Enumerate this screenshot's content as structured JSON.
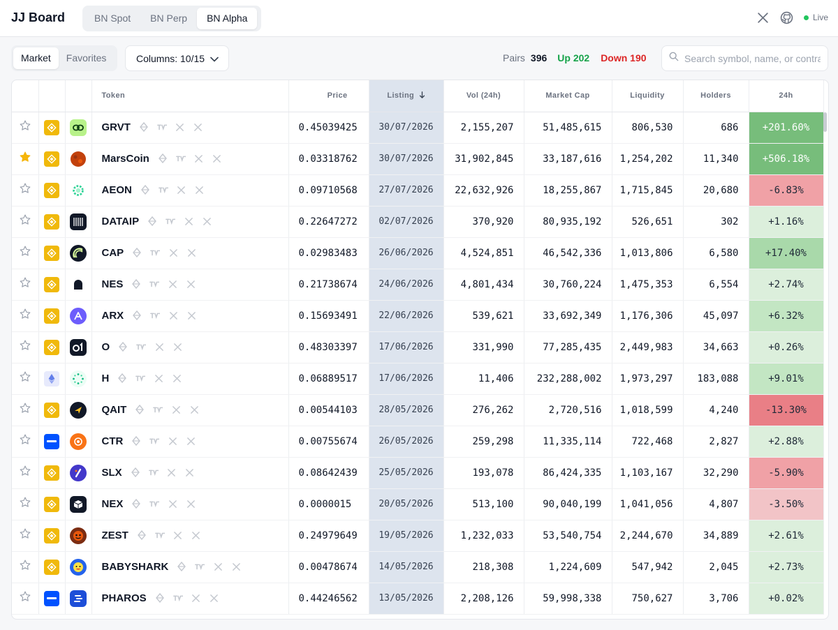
{
  "app": {
    "title": "JJ Board",
    "live_label": "Live"
  },
  "exchange_tabs": [
    "BN Spot",
    "BN Perp",
    "BN Alpha"
  ],
  "active_exchange_tab": "BN Alpha",
  "view_tabs": [
    "Market",
    "Favorites"
  ],
  "active_view_tab": "Market",
  "columns_button": {
    "label": "Columns: 10/15"
  },
  "stats": {
    "pairs_label": "Pairs",
    "pairs_value": "396",
    "up_label": "Up 202",
    "down_label": "Down 190"
  },
  "search": {
    "placeholder": "Search symbol, name, or contract",
    "value": ""
  },
  "colors": {
    "up": "#16a34a",
    "down": "#dc2626",
    "listing_bg": "#dde4ee",
    "star_fav": "#f5b50a"
  },
  "table": {
    "headers": {
      "token": "Token",
      "price": "Price",
      "listing": "Listing",
      "vol": "Vol (24h)",
      "mcap": "Market Cap",
      "liquidity": "Liquidity",
      "holders": "Holders",
      "change": "24h"
    },
    "sort_column": "listing",
    "sort_direction": "desc",
    "rows": [
      {
        "fav": false,
        "chain": "bnb",
        "logo": "link-icon",
        "symbol": "GRVT",
        "price": "0.45039425",
        "listing": "30/07/2026",
        "vol": "2,155,207",
        "mcap": "51,485,615",
        "liquidity": "806,530",
        "holders": "686",
        "change": "+201.60%",
        "change_pct": 201.6
      },
      {
        "fav": true,
        "chain": "bnb",
        "logo": "planet-icon",
        "symbol": "MarsCoin",
        "price": "0.03318762",
        "listing": "30/07/2026",
        "vol": "31,902,845",
        "mcap": "33,187,616",
        "liquidity": "1,254,202",
        "holders": "11,340",
        "change": "+506.18%",
        "change_pct": 506.18
      },
      {
        "fav": false,
        "chain": "bnb",
        "logo": "gear-icon",
        "symbol": "AEON",
        "price": "0.09710568",
        "listing": "27/07/2026",
        "vol": "22,632,926",
        "mcap": "18,255,867",
        "liquidity": "1,715,845",
        "holders": "20,680",
        "change": "-6.83%",
        "change_pct": -6.83
      },
      {
        "fav": false,
        "chain": "bnb",
        "logo": "bars-icon",
        "symbol": "DATAIP",
        "price": "0.22647272",
        "listing": "02/07/2026",
        "vol": "370,920",
        "mcap": "80,935,192",
        "liquidity": "526,651",
        "holders": "302",
        "change": "+1.16%",
        "change_pct": 1.16
      },
      {
        "fav": false,
        "chain": "bnb",
        "logo": "rings-icon",
        "symbol": "CAP",
        "price": "0.02983483",
        "listing": "26/06/2026",
        "vol": "4,524,851",
        "mcap": "46,542,336",
        "liquidity": "1,013,806",
        "holders": "6,580",
        "change": "+17.40%",
        "change_pct": 17.4
      },
      {
        "fav": false,
        "chain": "bnb",
        "logo": "arch-icon",
        "symbol": "NES",
        "price": "0.21738674",
        "listing": "24/06/2026",
        "vol": "4,801,434",
        "mcap": "30,760,224",
        "liquidity": "1,475,353",
        "holders": "6,554",
        "change": "+2.74%",
        "change_pct": 2.74
      },
      {
        "fav": false,
        "chain": "bnb",
        "logo": "triangle-icon",
        "symbol": "ARX",
        "price": "0.15693491",
        "listing": "22/06/2026",
        "vol": "539,621",
        "mcap": "33,692,349",
        "liquidity": "1,176,306",
        "holders": "45,097",
        "change": "+6.32%",
        "change_pct": 6.32
      },
      {
        "fav": false,
        "chain": "bnb",
        "logo": "o1-icon",
        "symbol": "O",
        "price": "0.48303397",
        "listing": "17/06/2026",
        "vol": "331,990",
        "mcap": "77,285,435",
        "liquidity": "2,449,983",
        "holders": "34,663",
        "change": "+0.26%",
        "change_pct": 0.26
      },
      {
        "fav": false,
        "chain": "eth",
        "logo": "dots-ring-icon",
        "symbol": "H",
        "price": "0.06889517",
        "listing": "17/06/2026",
        "vol": "11,406",
        "mcap": "232,288,002",
        "liquidity": "1,973,297",
        "holders": "183,088",
        "change": "+9.01%",
        "change_pct": 9.01
      },
      {
        "fav": false,
        "chain": "bnb",
        "logo": "arrow-icon",
        "symbol": "QAIT",
        "price": "0.00544103",
        "listing": "28/05/2026",
        "vol": "276,262",
        "mcap": "2,720,516",
        "liquidity": "1,018,599",
        "holders": "4,240",
        "change": "-13.30%",
        "change_pct": -13.3
      },
      {
        "fav": false,
        "chain": "base",
        "logo": "flower-icon",
        "symbol": "CTR",
        "price": "0.00755674",
        "listing": "26/05/2026",
        "vol": "259,298",
        "mcap": "11,335,114",
        "liquidity": "722,468",
        "holders": "2,827",
        "change": "+2.88%",
        "change_pct": 2.88
      },
      {
        "fav": false,
        "chain": "bnb",
        "logo": "slash-icon",
        "symbol": "SLX",
        "price": "0.08642439",
        "listing": "25/05/2026",
        "vol": "193,078",
        "mcap": "86,424,335",
        "liquidity": "1,103,167",
        "holders": "32,290",
        "change": "-5.90%",
        "change_pct": -5.9
      },
      {
        "fav": false,
        "chain": "bnb",
        "logo": "cube-icon",
        "symbol": "NEX",
        "price": "0.0000015",
        "listing": "20/05/2026",
        "vol": "513,100",
        "mcap": "90,040,199",
        "liquidity": "1,041,056",
        "holders": "4,807",
        "change": "-3.50%",
        "change_pct": -3.5
      },
      {
        "fav": false,
        "chain": "bnb",
        "logo": "face-icon",
        "symbol": "ZEST",
        "price": "0.24979649",
        "listing": "19/05/2026",
        "vol": "1,232,033",
        "mcap": "53,540,754",
        "liquidity": "2,244,670",
        "holders": "34,889",
        "change": "+2.61%",
        "change_pct": 2.61
      },
      {
        "fav": false,
        "chain": "bnb",
        "logo": "smiley-icon",
        "symbol": "BABYSHARK",
        "price": "0.00478674",
        "listing": "14/05/2026",
        "vol": "218,308",
        "mcap": "1,224,609",
        "liquidity": "547,942",
        "holders": "2,045",
        "change": "+2.73%",
        "change_pct": 2.73
      },
      {
        "fav": false,
        "chain": "base",
        "logo": "stack-icon",
        "symbol": "PHAROS",
        "price": "0.44246562",
        "listing": "13/05/2026",
        "vol": "2,208,126",
        "mcap": "59,998,338",
        "liquidity": "750,627",
        "holders": "3,706",
        "change": "+0.02%",
        "change_pct": 0.02
      }
    ]
  }
}
